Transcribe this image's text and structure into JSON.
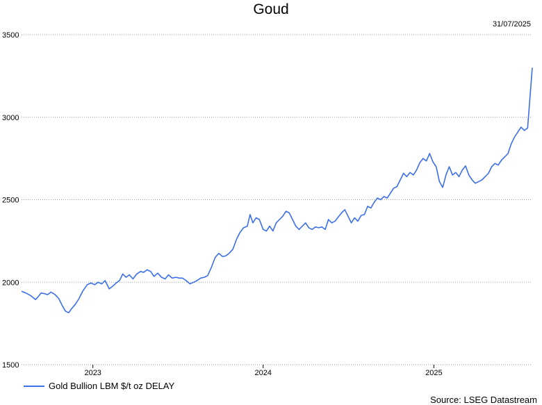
{
  "colors": {
    "series": "#3a6ee8",
    "grid": "#9a9a9a"
  },
  "chart_data": {
    "type": "line",
    "title": "Goud",
    "date_label": "31/07/2025",
    "source": "Source: LSEG Datastream",
    "ylim": [
      1500,
      3500
    ],
    "xlim": [
      "2022-08-01",
      "2025-07-31"
    ],
    "yticks": [
      1500,
      2000,
      2500,
      3000,
      3500
    ],
    "xticks": [
      {
        "label": "2023",
        "date": "2023-01-01"
      },
      {
        "label": "2024",
        "date": "2024-01-01"
      },
      {
        "label": "2025",
        "date": "2025-01-01"
      }
    ],
    "grid": true,
    "legend_position": "bottom-left",
    "series": [
      {
        "name": "Gold Bullion LBM $/t oz DELAY",
        "points": [
          [
            "2022-08-01",
            1945
          ],
          [
            "2022-08-10",
            1935
          ],
          [
            "2022-08-20",
            1920
          ],
          [
            "2022-08-31",
            1895
          ],
          [
            "2022-09-05",
            1910
          ],
          [
            "2022-09-12",
            1935
          ],
          [
            "2022-09-20",
            1930
          ],
          [
            "2022-09-26",
            1925
          ],
          [
            "2022-10-03",
            1940
          ],
          [
            "2022-10-12",
            1925
          ],
          [
            "2022-10-20",
            1900
          ],
          [
            "2022-10-27",
            1860
          ],
          [
            "2022-11-03",
            1825
          ],
          [
            "2022-11-10",
            1815
          ],
          [
            "2022-11-15",
            1835
          ],
          [
            "2022-11-24",
            1865
          ],
          [
            "2022-12-02",
            1900
          ],
          [
            "2022-12-10",
            1945
          ],
          [
            "2022-12-20",
            1985
          ],
          [
            "2022-12-28",
            1995
          ],
          [
            "2023-01-05",
            1985
          ],
          [
            "2023-01-12",
            2000
          ],
          [
            "2023-01-20",
            1990
          ],
          [
            "2023-01-27",
            2010
          ],
          [
            "2023-02-05",
            1960
          ],
          [
            "2023-02-12",
            1975
          ],
          [
            "2023-02-20",
            1995
          ],
          [
            "2023-02-27",
            2010
          ],
          [
            "2023-03-06",
            2050
          ],
          [
            "2023-03-13",
            2030
          ],
          [
            "2023-03-20",
            2045
          ],
          [
            "2023-03-28",
            2020
          ],
          [
            "2023-04-05",
            2050
          ],
          [
            "2023-04-13",
            2065
          ],
          [
            "2023-04-20",
            2060
          ],
          [
            "2023-04-27",
            2075
          ],
          [
            "2023-05-05",
            2065
          ],
          [
            "2023-05-12",
            2035
          ],
          [
            "2023-05-20",
            2055
          ],
          [
            "2023-05-28",
            2030
          ],
          [
            "2023-06-05",
            2020
          ],
          [
            "2023-06-12",
            2045
          ],
          [
            "2023-06-20",
            2025
          ],
          [
            "2023-06-28",
            2030
          ],
          [
            "2023-07-05",
            2025
          ],
          [
            "2023-07-12",
            2025
          ],
          [
            "2023-07-20",
            2010
          ],
          [
            "2023-07-28",
            1990
          ],
          [
            "2023-08-05",
            2000
          ],
          [
            "2023-08-12",
            2010
          ],
          [
            "2023-08-20",
            2025
          ],
          [
            "2023-08-28",
            2030
          ],
          [
            "2023-09-04",
            2040
          ],
          [
            "2023-09-12",
            2090
          ],
          [
            "2023-09-20",
            2150
          ],
          [
            "2023-09-28",
            2175
          ],
          [
            "2023-10-06",
            2155
          ],
          [
            "2023-10-13",
            2160
          ],
          [
            "2023-10-20",
            2175
          ],
          [
            "2023-10-28",
            2200
          ],
          [
            "2023-11-05",
            2260
          ],
          [
            "2023-11-12",
            2300
          ],
          [
            "2023-11-20",
            2330
          ],
          [
            "2023-11-28",
            2340
          ],
          [
            "2023-12-04",
            2410
          ],
          [
            "2023-12-10",
            2360
          ],
          [
            "2023-12-17",
            2390
          ],
          [
            "2023-12-24",
            2380
          ],
          [
            "2024-01-01",
            2320
          ],
          [
            "2024-01-08",
            2310
          ],
          [
            "2024-01-15",
            2340
          ],
          [
            "2024-01-22",
            2310
          ],
          [
            "2024-01-29",
            2360
          ],
          [
            "2024-02-05",
            2380
          ],
          [
            "2024-02-12",
            2400
          ],
          [
            "2024-02-19",
            2430
          ],
          [
            "2024-02-26",
            2420
          ],
          [
            "2024-03-04",
            2380
          ],
          [
            "2024-03-11",
            2340
          ],
          [
            "2024-03-18",
            2320
          ],
          [
            "2024-03-25",
            2340
          ],
          [
            "2024-04-01",
            2360
          ],
          [
            "2024-04-08",
            2330
          ],
          [
            "2024-04-15",
            2320
          ],
          [
            "2024-04-22",
            2335
          ],
          [
            "2024-04-29",
            2330
          ],
          [
            "2024-05-06",
            2335
          ],
          [
            "2024-05-13",
            2320
          ],
          [
            "2024-05-20",
            2380
          ],
          [
            "2024-05-27",
            2360
          ],
          [
            "2024-06-03",
            2370
          ],
          [
            "2024-06-10",
            2395
          ],
          [
            "2024-06-17",
            2420
          ],
          [
            "2024-06-24",
            2440
          ],
          [
            "2024-07-01",
            2400
          ],
          [
            "2024-07-08",
            2360
          ],
          [
            "2024-07-15",
            2390
          ],
          [
            "2024-07-22",
            2370
          ],
          [
            "2024-07-29",
            2405
          ],
          [
            "2024-08-05",
            2410
          ],
          [
            "2024-08-12",
            2460
          ],
          [
            "2024-08-19",
            2450
          ],
          [
            "2024-08-26",
            2485
          ],
          [
            "2024-09-02",
            2510
          ],
          [
            "2024-09-09",
            2500
          ],
          [
            "2024-09-16",
            2520
          ],
          [
            "2024-09-23",
            2510
          ],
          [
            "2024-09-30",
            2540
          ],
          [
            "2024-10-07",
            2570
          ],
          [
            "2024-10-14",
            2580
          ],
          [
            "2024-10-21",
            2620
          ],
          [
            "2024-10-28",
            2660
          ],
          [
            "2024-11-04",
            2640
          ],
          [
            "2024-11-11",
            2665
          ],
          [
            "2024-11-18",
            2650
          ],
          [
            "2024-11-25",
            2680
          ],
          [
            "2024-12-02",
            2725
          ],
          [
            "2024-12-09",
            2750
          ],
          [
            "2024-12-16",
            2735
          ],
          [
            "2024-12-23",
            2780
          ],
          [
            "2024-12-30",
            2730
          ],
          [
            "2025-01-06",
            2700
          ],
          [
            "2025-01-13",
            2610
          ],
          [
            "2025-01-20",
            2575
          ],
          [
            "2025-01-27",
            2650
          ],
          [
            "2025-02-03",
            2700
          ],
          [
            "2025-02-10",
            2650
          ],
          [
            "2025-02-17",
            2665
          ],
          [
            "2025-02-24",
            2640
          ],
          [
            "2025-03-03",
            2680
          ],
          [
            "2025-03-10",
            2705
          ],
          [
            "2025-03-17",
            2650
          ],
          [
            "2025-03-24",
            2620
          ],
          [
            "2025-03-31",
            2600
          ],
          [
            "2025-04-07",
            2610
          ],
          [
            "2025-04-14",
            2620
          ],
          [
            "2025-04-21",
            2640
          ],
          [
            "2025-04-28",
            2660
          ],
          [
            "2025-05-05",
            2700
          ],
          [
            "2025-05-12",
            2720
          ],
          [
            "2025-05-19",
            2710
          ],
          [
            "2025-05-26",
            2740
          ],
          [
            "2025-06-02",
            2760
          ],
          [
            "2025-06-09",
            2780
          ],
          [
            "2025-06-16",
            2840
          ],
          [
            "2025-06-23",
            2880
          ],
          [
            "2025-06-30",
            2910
          ],
          [
            "2025-07-07",
            2940
          ],
          [
            "2025-07-14",
            2920
          ],
          [
            "2025-07-21",
            2935
          ],
          [
            "2025-07-31",
            3300
          ]
        ]
      }
    ]
  }
}
